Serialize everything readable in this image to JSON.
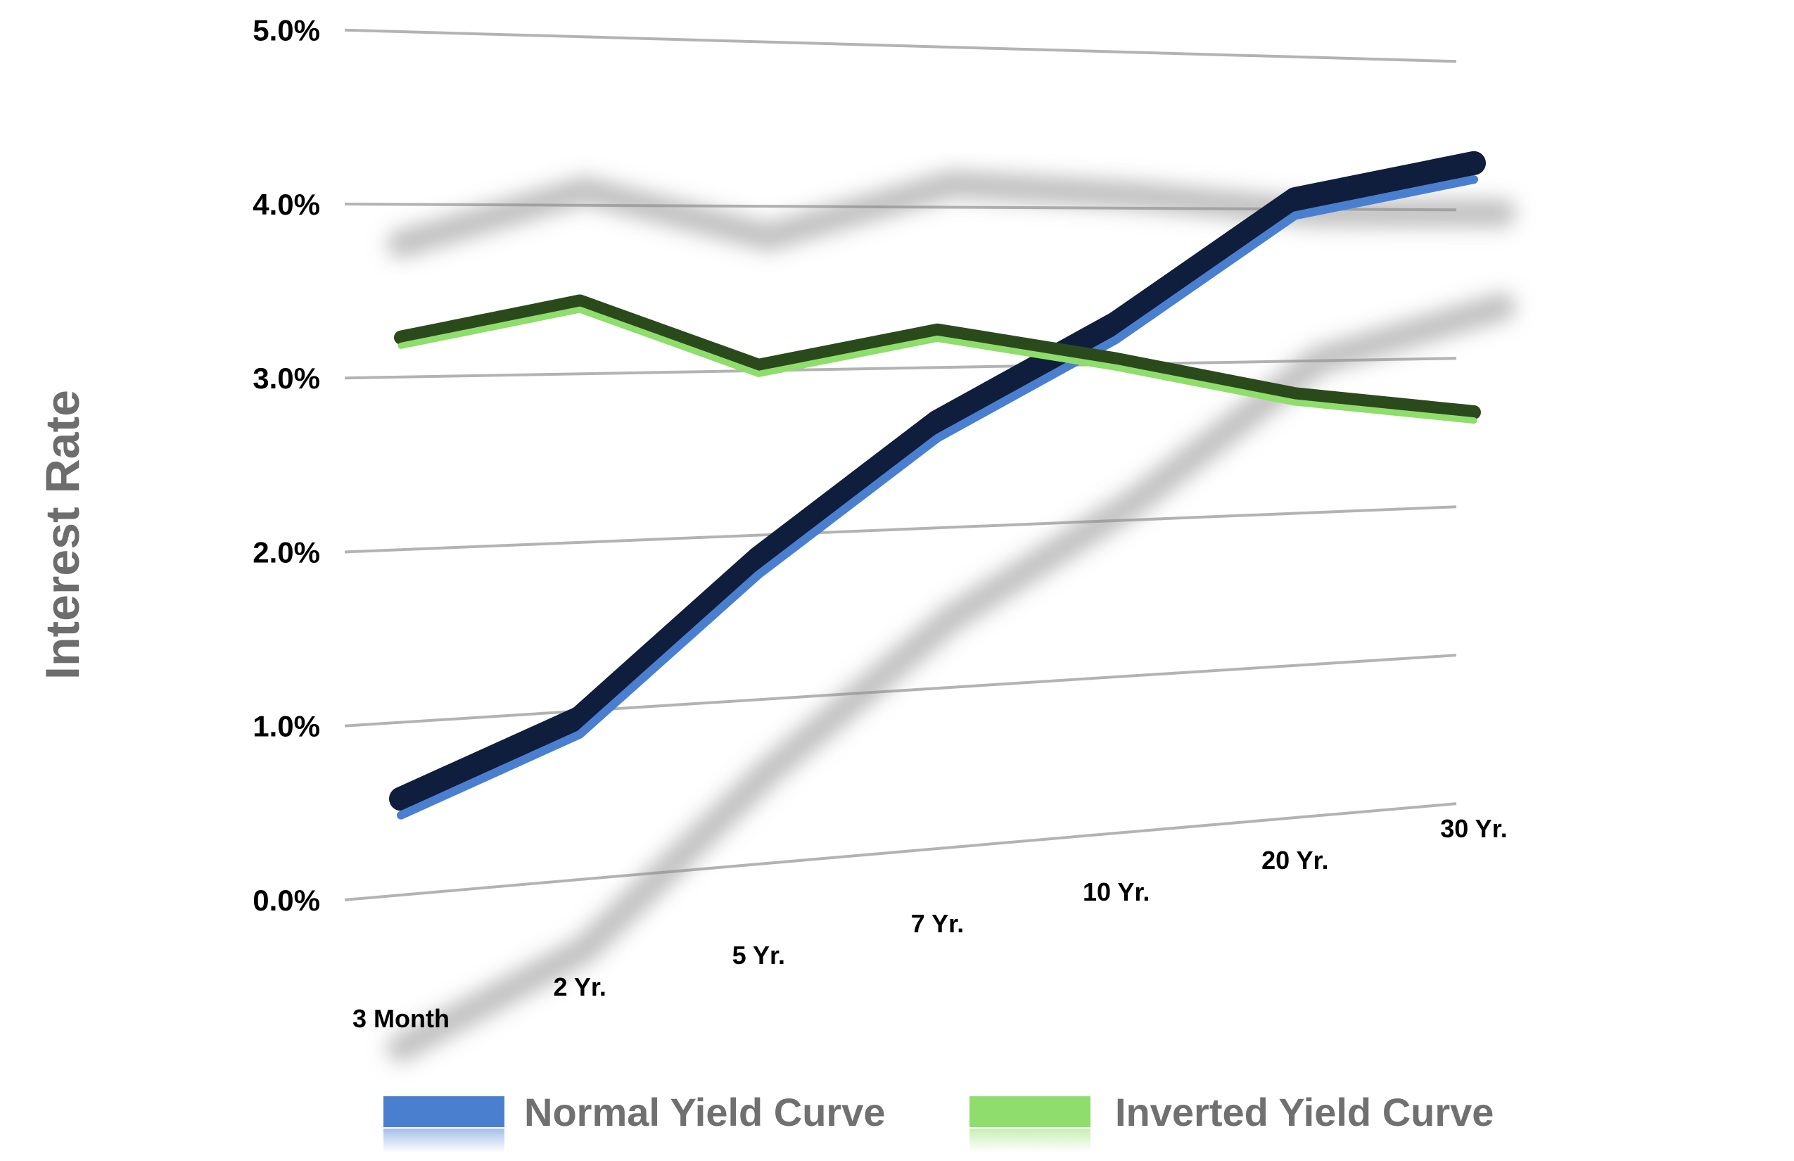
{
  "chart_data": {
    "type": "line",
    "ylabel": "Interest Rate",
    "xlabel": "",
    "categories": [
      "3 Month",
      "2 Yr.",
      "5 Yr.",
      "7 Yr.",
      "10 Yr.",
      "20 Yr.",
      "30 Yr."
    ],
    "y_ticks": [
      "0.0%",
      "1.0%",
      "2.0%",
      "3.0%",
      "4.0%",
      "5.0%"
    ],
    "ylim": [
      0,
      5
    ],
    "grid": "on",
    "legend_position": "bottom",
    "series": [
      {
        "name": "Normal Yield Curve",
        "values": [
          0.5,
          0.9,
          1.8,
          2.6,
          3.2,
          4.0,
          4.25
        ],
        "color": "#4a7fd0",
        "dark_color": "#0f1e3d"
      },
      {
        "name": "Inverted Yield Curve",
        "values": [
          3.2,
          3.4,
          3.0,
          3.2,
          3.0,
          2.75,
          2.6
        ],
        "color": "#8fdd6c",
        "dark_color": "#2a4a1c"
      }
    ]
  }
}
